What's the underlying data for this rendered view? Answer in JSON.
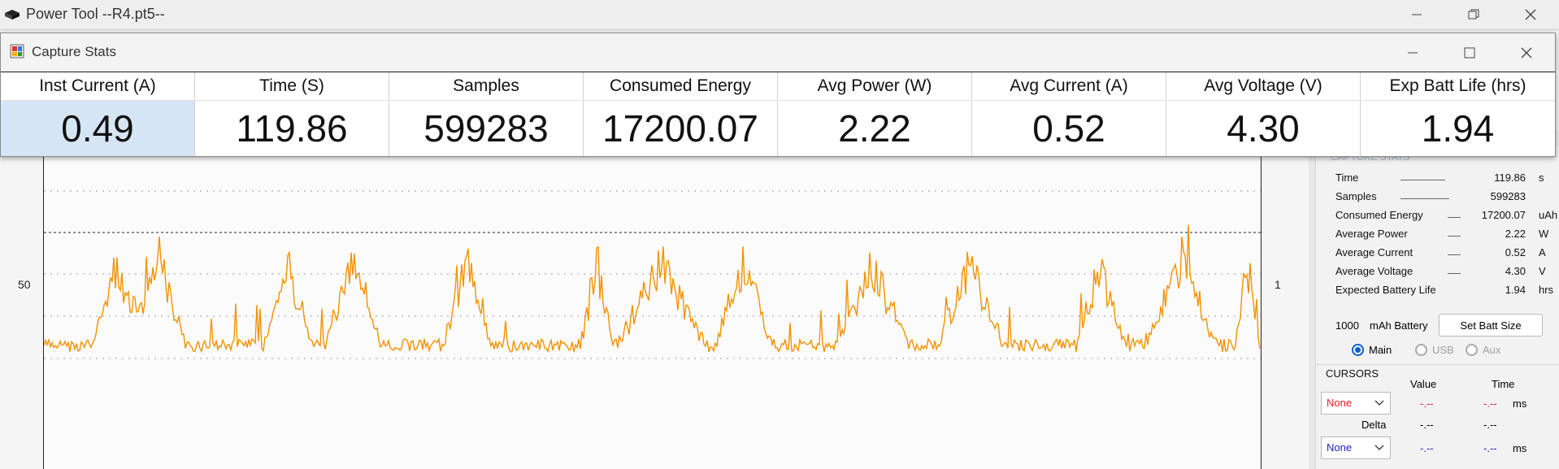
{
  "main_window": {
    "title": "Power Tool --R4.pt5--"
  },
  "plot": {
    "y_left_label": "50",
    "y_right_label": "1"
  },
  "right_panel": {
    "section_title": "CAPTURE STATS",
    "stats": [
      {
        "label": "Time",
        "value": "119.86",
        "unit": "s"
      },
      {
        "label": "Samples",
        "value": "599283",
        "unit": ""
      },
      {
        "label": "Consumed Energy",
        "value": "17200.07",
        "unit": "uAh"
      },
      {
        "label": "Average Power",
        "value": "2.22",
        "unit": "W"
      },
      {
        "label": "Average Current",
        "value": "0.52",
        "unit": "A"
      },
      {
        "label": "Average Voltage",
        "value": "4.30",
        "unit": "V"
      },
      {
        "label": "Expected Battery Life",
        "value": "1.94",
        "unit": "hrs"
      }
    ],
    "battery_capacity": "1000",
    "battery_unit": "mAh Battery",
    "set_batt_size_label": "Set Batt Size",
    "radios": [
      {
        "label": "Main",
        "selected": true
      },
      {
        "label": "USB",
        "selected": false
      },
      {
        "label": "Aux",
        "selected": false
      }
    ],
    "cursors": {
      "title": "CURSORS",
      "value_header": "Value",
      "time_header": "Time",
      "cursor1_select": "None",
      "cursor1_value": "-.--",
      "cursor1_time": "-.--",
      "cursor1_unit": "ms",
      "delta_label": "Delta",
      "delta_value": "-.--",
      "delta_time": "-.--",
      "cursor2_select": "None",
      "cursor2_value": "-.--",
      "cursor2_time": "-.--",
      "cursor2_unit": "ms",
      "cursor1_color": "#e02020",
      "cursor2_color": "#2020c0"
    }
  },
  "capture_stats_window": {
    "title": "Capture Stats",
    "columns": [
      {
        "header": "Inst Current (A)",
        "value": "0.49"
      },
      {
        "header": "Time (S)",
        "value": "119.86"
      },
      {
        "header": "Samples",
        "value": "599283"
      },
      {
        "header": "Consumed Energy",
        "value": "17200.07"
      },
      {
        "header": "Avg Power (W)",
        "value": "2.22"
      },
      {
        "header": "Avg Current (A)",
        "value": "0.52"
      },
      {
        "header": "Avg Voltage (V)",
        "value": "4.30"
      },
      {
        "header": "Exp Batt Life (hrs)",
        "value": "1.94"
      }
    ],
    "selected_column": 0
  },
  "colors": {
    "trace": "#f39200",
    "selection": "#d6e5f4",
    "radio_accent": "#0c5fc6"
  }
}
